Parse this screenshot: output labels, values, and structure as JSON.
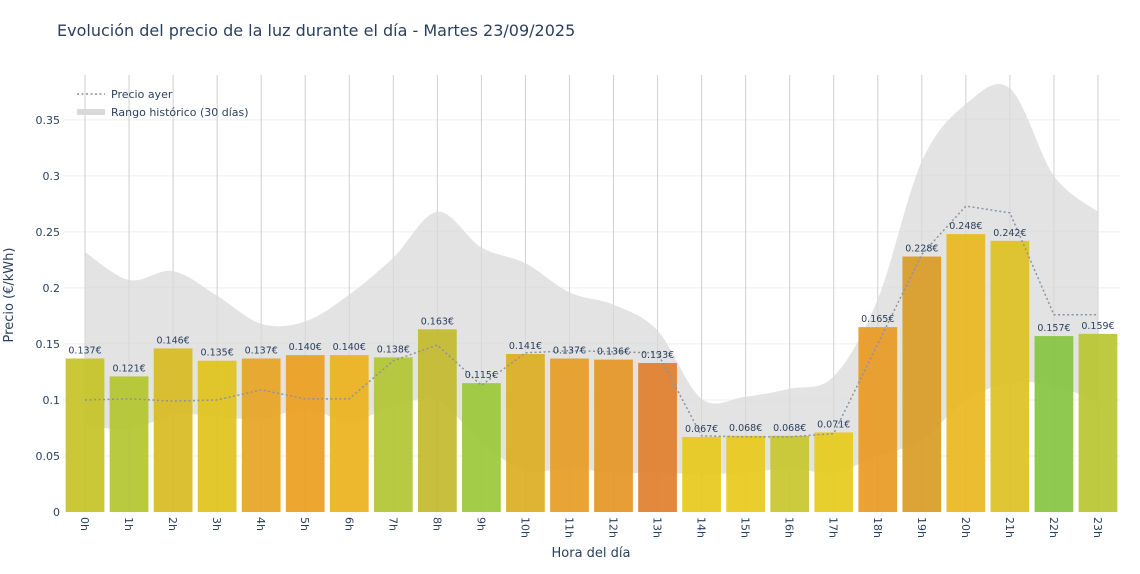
{
  "chart_data": {
    "type": "bar",
    "title": "Evolución del precio de la luz durante el día - Martes 23/09/2025",
    "xlabel": "Hora del día",
    "ylabel": "Precio (€/kWh)",
    "ylim": [
      0,
      0.39
    ],
    "yticks": [
      "0",
      "0.05",
      "0.1",
      "0.15",
      "0.2",
      "0.25",
      "0.3",
      "0.35"
    ],
    "grid": true,
    "legend_position": "top-left",
    "categories": [
      "0h",
      "1h",
      "2h",
      "3h",
      "4h",
      "5h",
      "6h",
      "7h",
      "8h",
      "9h",
      "10h",
      "11h",
      "12h",
      "13h",
      "14h",
      "15h",
      "16h",
      "17h",
      "18h",
      "19h",
      "20h",
      "21h",
      "22h",
      "23h"
    ],
    "series": [
      {
        "values": [
          0.137,
          0.121,
          0.146,
          0.135,
          0.137,
          0.14,
          0.14,
          0.138,
          0.163,
          0.115,
          0.141,
          0.137,
          0.136,
          0.133,
          0.067,
          0.068,
          0.068,
          0.071,
          0.165,
          0.228,
          0.248,
          0.242,
          0.157,
          0.159
        ],
        "labels": [
          "0.137€",
          "0.121€",
          "0.146€",
          "0.135€",
          "0.137€",
          "0.140€",
          "0.140€",
          "0.138€",
          "0.163€",
          "0.115€",
          "0.141€",
          "0.137€",
          "0.136€",
          "0.133€",
          "0.067€",
          "0.068€",
          "0.068€",
          "0.071€",
          "0.165€",
          "0.228€",
          "0.248€",
          "0.242€",
          "0.157€",
          "0.159€"
        ],
        "colors": [
          "#c6c326",
          "#b4c52f",
          "#d9bb22",
          "#dfc21b",
          "#e8a423",
          "#eba020",
          "#ecb21c",
          "#b2c532",
          "#c2ba2d",
          "#9bc93a",
          "#dcae24",
          "#e69d25",
          "#e59625",
          "#df7f2c",
          "#e7c91d",
          "#e9c91b",
          "#c8c72c",
          "#e6cb1b",
          "#e89a24",
          "#d99c26",
          "#eab620",
          "#ddc124",
          "#86c440",
          "#b9c530"
        ]
      },
      {
        "name": "Precio ayer",
        "line_style": "dotted",
        "color": "#8a949e",
        "values": [
          0.1,
          0.101,
          0.099,
          0.1,
          0.109,
          0.101,
          0.101,
          0.135,
          0.149,
          0.113,
          0.142,
          0.144,
          0.143,
          0.142,
          0.068,
          0.067,
          0.067,
          0.07,
          0.15,
          0.23,
          0.273,
          0.267,
          0.176,
          0.176
        ]
      },
      {
        "name": "Rango histórico (30 días)",
        "type": "area-band",
        "color": "#d9d9d9",
        "upper": [
          0.232,
          0.207,
          0.215,
          0.193,
          0.168,
          0.17,
          0.194,
          0.227,
          0.268,
          0.236,
          0.222,
          0.196,
          0.185,
          0.162,
          0.101,
          0.103,
          0.11,
          0.121,
          0.19,
          0.313,
          0.364,
          0.378,
          0.3,
          0.268
        ],
        "lower": [
          0.079,
          0.073,
          0.087,
          0.085,
          0.083,
          0.092,
          0.081,
          0.094,
          0.1,
          0.062,
          0.037,
          0.039,
          0.035,
          0.035,
          0.034,
          0.035,
          0.039,
          0.035,
          0.05,
          0.064,
          0.1,
          0.115,
          0.113,
          0.098
        ]
      }
    ]
  }
}
